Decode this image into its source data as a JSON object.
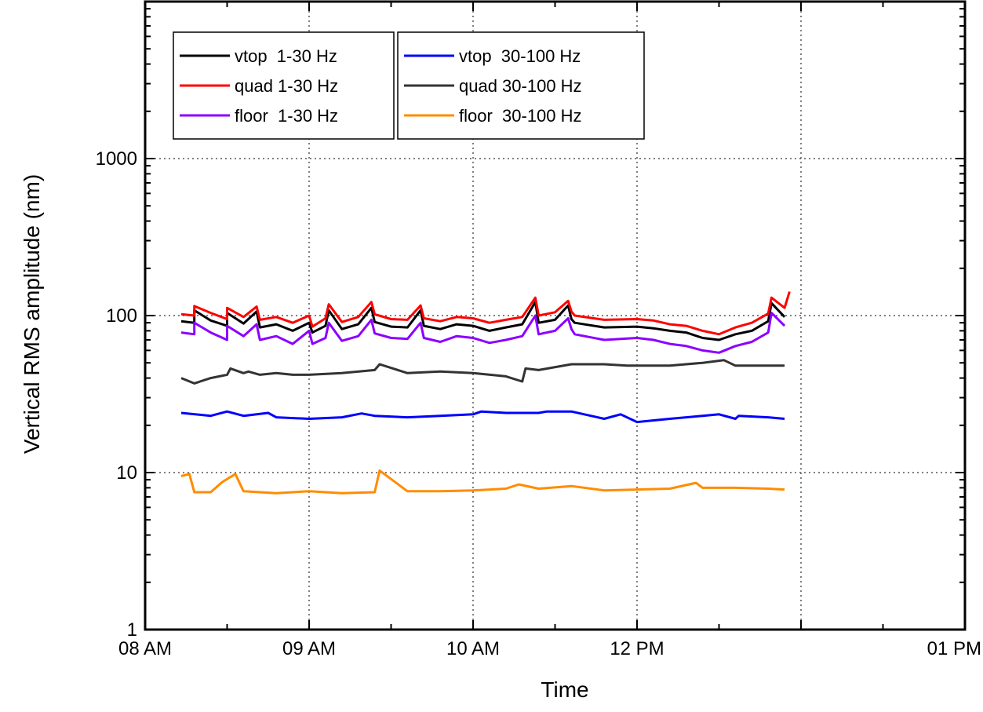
{
  "chart_data": {
    "type": "line",
    "title": "",
    "xlabel": "Time",
    "ylabel": "Vertical RMS amplitude (nm)",
    "y_scale": "log",
    "ylim": [
      1,
      10000
    ],
    "xlim": [
      0,
      5
    ],
    "x_ticks": [
      {
        "pos": 0,
        "label": "08 AM"
      },
      {
        "pos": 1,
        "label": "09 AM"
      },
      {
        "pos": 2,
        "label": "10 AM"
      },
      {
        "pos": 3,
        "label": "12 PM"
      },
      {
        "pos": 4,
        "label": "01 PM"
      }
    ],
    "y_ticks": [
      {
        "value": 1,
        "label": "1"
      },
      {
        "value": 10,
        "label": "10"
      },
      {
        "value": 100,
        "label": "100"
      },
      {
        "value": 1000,
        "label": "1000"
      }
    ],
    "grid": "dotted",
    "legend": "top-left",
    "series": [
      {
        "name": "vtop  1-30 Hz",
        "color": "#000000",
        "x": [
          0.22,
          0.3,
          0.4,
          0.5,
          0.6,
          0.7,
          0.8,
          0.9,
          1.0,
          1.02,
          1.1,
          1.2,
          1.3,
          1.4,
          1.5,
          1.6,
          1.7,
          1.8,
          1.9,
          2.0,
          2.1,
          2.2,
          2.3,
          2.4,
          2.5,
          2.6,
          2.62,
          2.8,
          3.0,
          3.1,
          3.2,
          3.3,
          3.4,
          3.5,
          3.6,
          3.7,
          3.8,
          3.9
        ],
        "y": [
          92,
          90,
          93,
          86,
          89,
          84,
          88,
          80,
          90,
          78,
          86,
          82,
          88,
          91,
          85,
          84,
          86,
          82,
          88,
          86,
          80,
          84,
          88,
          90,
          94,
          95,
          90,
          84,
          85,
          83,
          80,
          78,
          72,
          70,
          76,
          80,
          92,
          98
        ]
      },
      {
        "name": "quad 1-30 Hz",
        "color": "#ff0000",
        "x": [
          0.22,
          0.3,
          0.4,
          0.5,
          0.6,
          0.7,
          0.8,
          0.9,
          1.0,
          1.02,
          1.1,
          1.2,
          1.3,
          1.4,
          1.5,
          1.6,
          1.7,
          1.8,
          1.9,
          2.0,
          2.1,
          2.2,
          2.3,
          2.4,
          2.5,
          2.6,
          2.62,
          2.8,
          3.0,
          3.1,
          3.2,
          3.3,
          3.4,
          3.5,
          3.6,
          3.7,
          3.8,
          3.9
        ],
        "y": [
          102,
          100,
          104,
          95,
          98,
          94,
          98,
          90,
          100,
          85,
          96,
          91,
          98,
          102,
          95,
          94,
          96,
          92,
          98,
          96,
          90,
          94,
          98,
          100,
          105,
          106,
          100,
          94,
          95,
          93,
          88,
          86,
          80,
          76,
          84,
          90,
          103,
          112
        ]
      },
      {
        "name": "floor  1-30 Hz",
        "color": "#8b00ff",
        "x": [
          0.22,
          0.3,
          0.4,
          0.5,
          0.6,
          0.7,
          0.8,
          0.9,
          1.0,
          1.02,
          1.1,
          1.2,
          1.3,
          1.4,
          1.5,
          1.6,
          1.7,
          1.8,
          1.9,
          2.0,
          2.1,
          2.2,
          2.3,
          2.4,
          2.5,
          2.6,
          2.62,
          2.8,
          3.0,
          3.1,
          3.2,
          3.3,
          3.4,
          3.5,
          3.6,
          3.7,
          3.8,
          3.9
        ],
        "y": [
          78,
          76,
          78,
          70,
          74,
          70,
          74,
          66,
          80,
          66,
          72,
          69,
          74,
          77,
          72,
          71,
          72,
          68,
          74,
          72,
          67,
          70,
          74,
          76,
          80,
          82,
          76,
          70,
          72,
          70,
          66,
          64,
          60,
          58,
          64,
          68,
          78,
          86
        ]
      },
      {
        "name": "vtop  30-100 Hz",
        "color": "#0000ff",
        "x": [
          0.22,
          0.4,
          0.6,
          0.8,
          1.0,
          1.2,
          1.4,
          1.6,
          1.8,
          2.0,
          2.2,
          2.4,
          2.6,
          2.8,
          3.0,
          3.2,
          3.4,
          3.6,
          3.8,
          3.9
        ],
        "y": [
          24,
          23,
          23,
          22.5,
          22,
          22.5,
          23,
          22.5,
          23,
          23.5,
          24,
          24,
          24.5,
          22,
          21,
          22,
          23,
          22,
          22.5,
          22
        ]
      },
      {
        "name": "quad 30-100 Hz",
        "color": "#333333",
        "x": [
          0.22,
          0.3,
          0.4,
          0.5,
          0.6,
          0.7,
          0.8,
          0.9,
          1.0,
          1.2,
          1.4,
          1.6,
          1.8,
          2.0,
          2.2,
          2.3,
          2.4,
          2.6,
          2.8,
          3.0,
          3.2,
          3.4,
          3.6,
          3.8,
          3.9
        ],
        "y": [
          40,
          37,
          40,
          42,
          43,
          42,
          43,
          42,
          42,
          43,
          45,
          43,
          44,
          43,
          41,
          38,
          45,
          49,
          49,
          48,
          48,
          50,
          48,
          48,
          48
        ]
      },
      {
        "name": "floor  30-100 Hz",
        "color": "#ff8c00",
        "x": [
          0.22,
          0.3,
          0.4,
          0.6,
          0.8,
          1.0,
          1.2,
          1.4,
          1.6,
          1.8,
          2.0,
          2.2,
          2.4,
          2.6,
          2.8,
          3.0,
          3.2,
          3.4,
          3.6,
          3.8,
          3.9
        ],
        "y": [
          9.5,
          7.5,
          7.5,
          7.6,
          7.4,
          7.6,
          7.4,
          7.5,
          7.6,
          7.6,
          7.7,
          7.9,
          7.9,
          8.2,
          7.7,
          7.8,
          7.9,
          8.0,
          8.0,
          7.9,
          7.8
        ]
      }
    ],
    "spikes": [
      {
        "series": "vtop  30-100 Hz",
        "x": [
          0.5,
          0.75,
          1.32,
          2.05,
          2.45,
          2.9,
          3.5,
          3.62
        ],
        "y": [
          24.5,
          24,
          23.8,
          24.5,
          24.5,
          23.5,
          23.5,
          23
        ]
      },
      {
        "series": "quad 30-100 Hz",
        "x": [
          0.52,
          0.63,
          1.43,
          2.32,
          2.6,
          2.94,
          3.53
        ],
        "y": [
          46,
          44,
          49,
          46,
          49,
          48,
          52
        ]
      },
      {
        "series": "floor  30-100 Hz",
        "x": [
          0.27,
          0.47,
          0.55,
          1.43,
          2.28,
          3.36
        ],
        "y": [
          9.8,
          8.7,
          9.8,
          10.3,
          8.4,
          8.6
        ]
      },
      {
        "series": "vtop  1-30 Hz",
        "x": [
          0.3,
          0.5,
          0.68,
          1.12,
          1.38,
          1.68,
          2.38,
          2.58,
          3.82
        ],
        "y": [
          108,
          104,
          106,
          108,
          112,
          108,
          122,
          116,
          120
        ]
      },
      {
        "series": "quad 1-30 Hz",
        "x": [
          0.3,
          0.5,
          0.68,
          1.12,
          1.38,
          1.68,
          2.38,
          2.58,
          3.82,
          3.93
        ],
        "y": [
          115,
          112,
          114,
          118,
          122,
          116,
          130,
          124,
          130,
          142
        ]
      },
      {
        "series": "floor  1-30 Hz",
        "x": [
          0.3,
          0.5,
          0.68,
          1.12,
          1.38,
          1.68,
          2.38,
          2.58,
          3.82
        ],
        "y": [
          90,
          86,
          88,
          90,
          94,
          90,
          100,
          96,
          104
        ]
      }
    ]
  },
  "legend_boxes": [
    [
      "vtop  1-30 Hz",
      "quad 1-30 Hz",
      "floor  1-30 Hz"
    ],
    [
      "vtop  30-100 Hz",
      "quad 30-100 Hz",
      "floor  30-100 Hz"
    ]
  ]
}
